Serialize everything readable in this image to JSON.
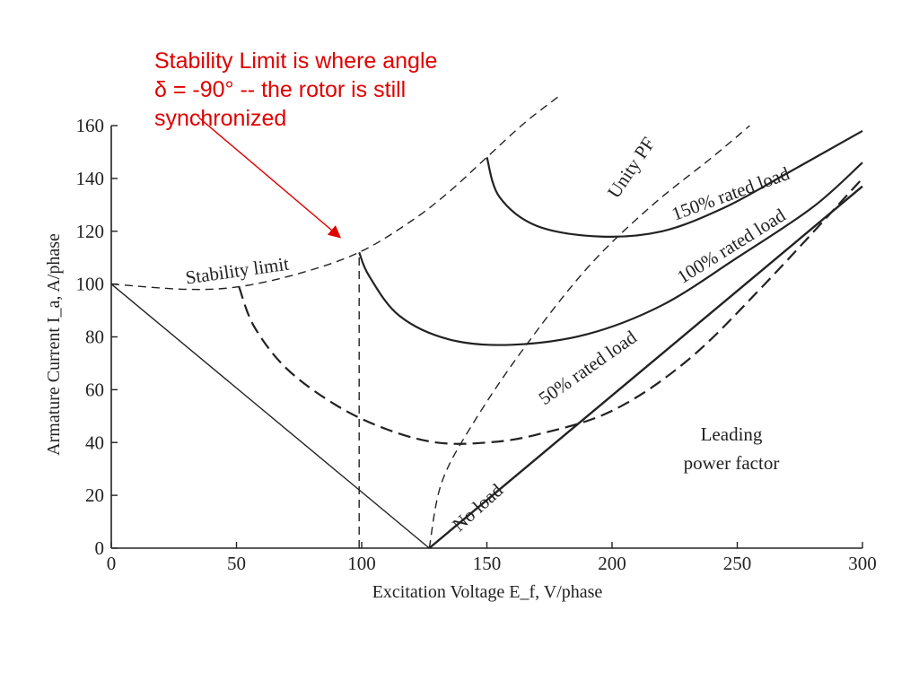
{
  "annotation": {
    "lines": [
      "Stability Limit is where angle",
      "δ = -90° -- the rotor is still",
      "synchronized"
    ],
    "color": "#e00000"
  },
  "chart_data": {
    "type": "line",
    "xlabel": "Excitation Voltage E_f, V/phase",
    "ylabel": "Armature Current I_a, A/phase",
    "xlim": [
      0,
      300
    ],
    "ylim": [
      0,
      160
    ],
    "xticks": [
      "0",
      "50",
      "100",
      "150",
      "200",
      "250",
      "300"
    ],
    "yticks": [
      "0",
      "20",
      "40",
      "60",
      "80",
      "100",
      "120",
      "140",
      "160"
    ],
    "grid": false,
    "series": [
      {
        "name": "No load",
        "style": "solid",
        "x": [
          0,
          127,
          300
        ],
        "y": [
          100,
          0,
          137
        ]
      },
      {
        "name": "50% rated load",
        "style": "dashed",
        "x": [
          51,
          57,
          70,
          90,
          110,
          130,
          150,
          170,
          200,
          230,
          260,
          300
        ],
        "y": [
          99,
          84,
          68,
          54,
          45,
          40,
          40,
          43,
          52,
          71,
          99,
          140
        ]
      },
      {
        "name": "100% rated load",
        "style": "solid",
        "x": [
          99,
          103,
          115,
          135,
          160,
          190,
          220,
          250,
          280,
          300
        ],
        "y": [
          112,
          103,
          88,
          79,
          77,
          81,
          92,
          110,
          129,
          146
        ]
      },
      {
        "name": "150% rated load",
        "style": "solid",
        "x": [
          150,
          155,
          170,
          195,
          220,
          245,
          270,
          300
        ],
        "y": [
          148,
          133,
          122,
          118,
          120,
          129,
          142,
          158
        ]
      },
      {
        "name": "Unity PF",
        "style": "dashed",
        "x": [
          127,
          132,
          145,
          165,
          190,
          215,
          240,
          255
        ],
        "y": [
          0,
          25,
          48,
          76,
          106,
          129,
          148,
          160
        ]
      },
      {
        "name": "Stability limit",
        "style": "dashed",
        "x": [
          0,
          30,
          51,
          75,
          99,
          120,
          135,
          150,
          165,
          180
        ],
        "y": [
          100,
          98,
          99,
          104,
          112,
          124,
          135,
          148,
          161,
          172
        ]
      },
      {
        "name": "",
        "style": "dashed",
        "x": [
          99,
          99
        ],
        "y": [
          0,
          112
        ]
      }
    ],
    "annotations": [
      {
        "text": "Stability limit",
        "x": 30,
        "y": 100,
        "angle": -8
      },
      {
        "text": "Unity PF",
        "x": 202,
        "y": 132,
        "angle": -56
      },
      {
        "text": "150% rated load",
        "x": 225,
        "y": 124,
        "angle": -20
      },
      {
        "text": "100% rated load",
        "x": 228,
        "y": 100,
        "angle": -32
      },
      {
        "text": "50% rated load",
        "x": 173,
        "y": 54,
        "angle": -35
      },
      {
        "text": "No load",
        "x": 139,
        "y": 6,
        "angle": -42
      }
    ],
    "notes": [
      "Leading",
      "power factor"
    ],
    "arrow": {
      "from_x": 35,
      "from_y": 163,
      "to_x": 91,
      "to_y": 118,
      "color": "#e00000"
    }
  }
}
